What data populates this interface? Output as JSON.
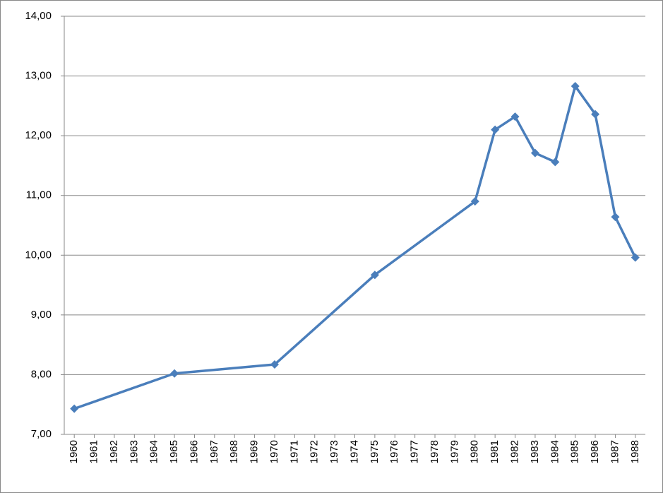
{
  "chart_data": {
    "type": "line",
    "x": [
      1960,
      1965,
      1970,
      1975,
      1980,
      1981,
      1982,
      1983,
      1984,
      1985,
      1986,
      1987,
      1988
    ],
    "series": [
      {
        "name": null,
        "color": "#4a7ebb",
        "values": [
          7.43,
          8.02,
          8.17,
          9.67,
          10.9,
          12.1,
          12.32,
          11.71,
          11.56,
          12.83,
          12.36,
          10.64,
          9.96
        ]
      }
    ],
    "xlim": [
      1959.5,
      1988.5
    ],
    "xticks": [
      1960,
      1961,
      1962,
      1963,
      1964,
      1965,
      1966,
      1967,
      1968,
      1969,
      1970,
      1971,
      1972,
      1973,
      1974,
      1975,
      1976,
      1977,
      1978,
      1979,
      1980,
      1981,
      1982,
      1983,
      1984,
      1985,
      1986,
      1987,
      1988
    ],
    "ylim": [
      7,
      14
    ],
    "yticks": [
      {
        "value": 7,
        "label": "7,00"
      },
      {
        "value": 8,
        "label": "8,00"
      },
      {
        "value": 9,
        "label": "9,00"
      },
      {
        "value": 10,
        "label": "10,00"
      },
      {
        "value": 11,
        "label": "11,00"
      },
      {
        "value": 12,
        "label": "12,00"
      },
      {
        "value": 13,
        "label": "13,00"
      },
      {
        "value": 14,
        "label": "14,00"
      }
    ],
    "grid": true
  }
}
